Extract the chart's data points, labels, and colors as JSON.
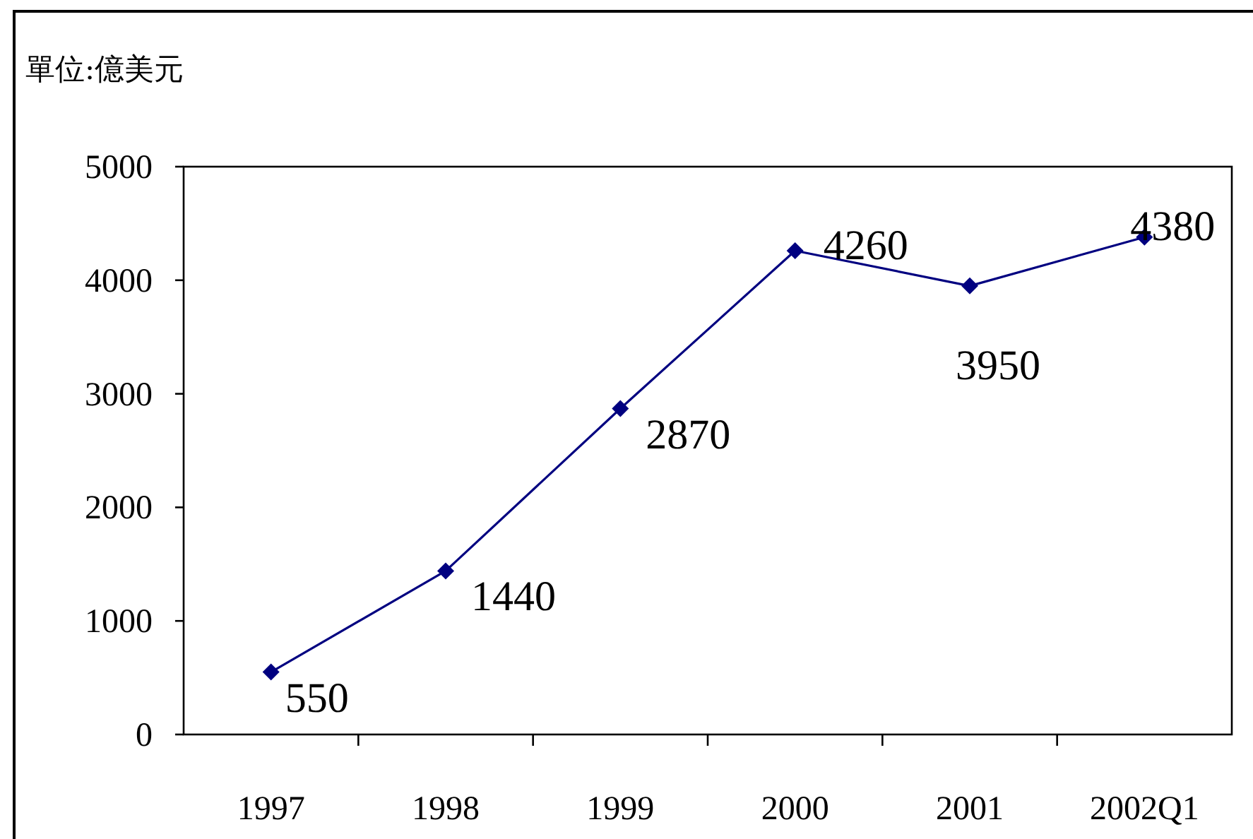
{
  "chart_data": {
    "type": "line",
    "ylabel": "單位:億美元",
    "categories": [
      "1997",
      "1998",
      "1999",
      "2000",
      "2001",
      "2002Q1"
    ],
    "series": [
      {
        "color": "#000080",
        "values": [
          550,
          1440,
          2870,
          4260,
          3950,
          4380
        ]
      }
    ],
    "ylim": [
      0,
      5000
    ],
    "yticks": [
      0,
      1000,
      2000,
      3000,
      4000,
      5000
    ],
    "marker": "diamond",
    "line_style": "solid",
    "data_labels": true,
    "grid": false
  }
}
